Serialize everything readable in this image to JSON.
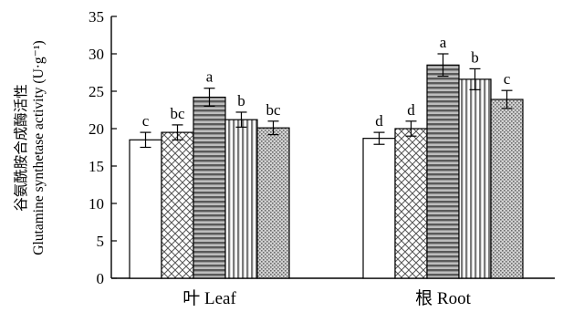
{
  "chart_data": {
    "type": "bar",
    "ylabel_line1": "谷氨酰胺合成酶活性",
    "ylabel_line2": "Glutamine synthetase activity (U·g⁻¹)",
    "ylim": [
      0,
      35
    ],
    "yticks": [
      0,
      5,
      10,
      15,
      20,
      25,
      30,
      35
    ],
    "grid": false,
    "legend": "none",
    "categories": [
      "叶 Leaf",
      "根 Root"
    ],
    "series": [
      {
        "pattern": "white",
        "values": [
          18.5,
          18.7
        ],
        "errors": [
          1.0,
          0.8
        ],
        "letters": [
          "c",
          "d"
        ]
      },
      {
        "pattern": "crosshatch",
        "values": [
          19.5,
          20.0
        ],
        "errors": [
          1.0,
          1.0
        ],
        "letters": [
          "bc",
          "d"
        ]
      },
      {
        "pattern": "horizontal-stripes",
        "values": [
          24.2,
          28.5
        ],
        "errors": [
          1.2,
          1.5
        ],
        "letters": [
          "a",
          "a"
        ]
      },
      {
        "pattern": "vertical-stripes",
        "values": [
          21.2,
          26.6
        ],
        "errors": [
          1.0,
          1.4
        ],
        "letters": [
          "b",
          "b"
        ]
      },
      {
        "pattern": "stipple",
        "values": [
          20.1,
          23.9
        ],
        "errors": [
          0.9,
          1.2
        ],
        "letters": [
          "bc",
          "c"
        ]
      }
    ]
  }
}
